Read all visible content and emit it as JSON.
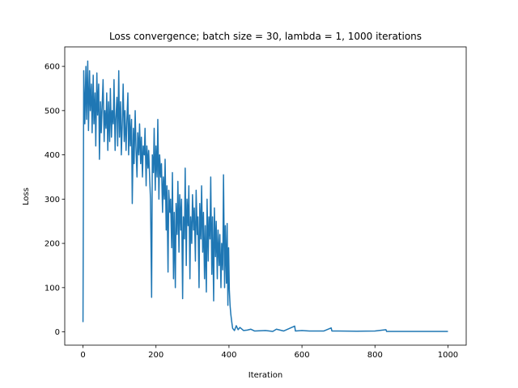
{
  "chart_data": {
    "type": "line",
    "title": "Loss convergence; batch size = 30, lambda = 1, 1000 iterations",
    "xlabel": "Iteration",
    "ylabel": "Loss",
    "xlim": [
      -50,
      1050
    ],
    "ylim": [
      -30,
      644
    ],
    "xticks": [
      0,
      200,
      400,
      600,
      800,
      1000
    ],
    "yticks": [
      0,
      100,
      200,
      300,
      400,
      500,
      600
    ],
    "grid": false,
    "series": [
      {
        "name": "Loss",
        "color": "#1f77b4",
        "x": [
          0,
          2,
          5,
          8,
          10,
          13,
          15,
          18,
          20,
          23,
          25,
          28,
          30,
          33,
          35,
          38,
          40,
          43,
          45,
          48,
          50,
          55,
          58,
          60,
          63,
          65,
          68,
          70,
          73,
          75,
          78,
          80,
          83,
          85,
          88,
          90,
          93,
          95,
          98,
          100,
          103,
          105,
          108,
          110,
          113,
          115,
          118,
          120,
          123,
          125,
          128,
          130,
          133,
          135,
          138,
          140,
          143,
          145,
          148,
          150,
          153,
          155,
          158,
          160,
          163,
          165,
          168,
          170,
          173,
          175,
          178,
          180,
          183,
          185,
          188,
          190,
          193,
          195,
          198,
          200,
          203,
          205,
          208,
          210,
          213,
          215,
          218,
          220,
          223,
          225,
          228,
          230,
          233,
          235,
          238,
          240,
          243,
          245,
          248,
          250,
          253,
          255,
          258,
          260,
          263,
          265,
          268,
          270,
          273,
          275,
          278,
          280,
          283,
          285,
          288,
          290,
          293,
          295,
          298,
          300,
          303,
          305,
          308,
          310,
          313,
          315,
          318,
          320,
          323,
          325,
          328,
          330,
          333,
          335,
          338,
          340,
          343,
          345,
          348,
          350,
          353,
          355,
          358,
          360,
          363,
          365,
          368,
          370,
          373,
          375,
          378,
          380,
          383,
          385,
          388,
          390,
          393,
          395,
          397,
          399,
          401,
          403,
          405,
          408,
          410,
          415,
          420,
          425,
          430,
          440,
          450,
          460,
          470,
          500,
          520,
          530,
          550,
          580,
          582,
          600,
          620,
          660,
          680,
          682,
          700,
          750,
          800,
          830,
          832,
          900,
          950,
          1000
        ],
        "values": [
          22,
          590,
          470,
          600,
          480,
          612,
          455,
          590,
          500,
          560,
          450,
          580,
          470,
          540,
          420,
          585,
          490,
          560,
          390,
          520,
          450,
          570,
          430,
          500,
          460,
          540,
          410,
          520,
          430,
          550,
          440,
          500,
          470,
          570,
          410,
          480,
          530,
          420,
          590,
          440,
          520,
          400,
          480,
          560,
          430,
          500,
          410,
          470,
          540,
          400,
          490,
          420,
          480,
          290,
          460,
          380,
          500,
          420,
          350,
          450,
          400,
          470,
          380,
          440,
          350,
          420,
          400,
          460,
          330,
          420,
          370,
          410,
          340,
          300,
          78,
          400,
          360,
          460,
          320,
          420,
          350,
          480,
          300,
          400,
          350,
          380,
          270,
          350,
          300,
          390,
          230,
          330,
          135,
          320,
          270,
          300,
          190,
          360,
          120,
          270,
          100,
          290,
          220,
          340,
          180,
          310,
          230,
          300,
          75,
          260,
          210,
          370,
          150,
          300,
          240,
          330,
          120,
          260,
          200,
          310,
          230,
          280,
          160,
          320,
          220,
          260,
          100,
          290,
          210,
          330,
          180,
          270,
          120,
          240,
          90,
          300,
          160,
          260,
          210,
          350,
          130,
          260,
          70,
          280,
          170,
          250,
          120,
          230,
          150,
          220,
          100,
          200,
          140,
          355,
          100,
          240,
          110,
          245,
          60,
          190,
          95,
          60,
          40,
          20,
          8,
          3,
          14,
          5,
          10,
          3,
          4,
          6,
          2,
          3,
          1,
          6,
          2,
          13,
          2,
          3,
          2,
          2,
          9,
          2,
          2,
          1.5,
          2,
          5,
          1,
          1,
          1,
          1
        ]
      }
    ]
  }
}
